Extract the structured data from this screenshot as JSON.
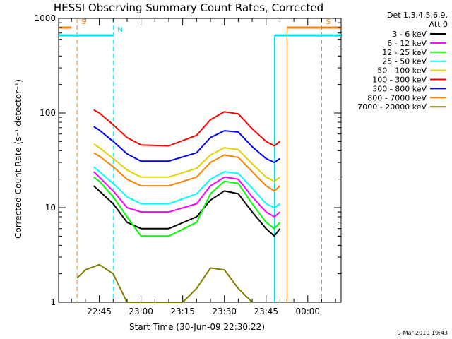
{
  "chart_data": {
    "type": "line",
    "title": "HESSI Observing Summary Count Rates, Corrected",
    "xlabel": "Start Time (30-Jun-09 22:30:22)",
    "ylabel": "Corrected Count Rate (s⁻¹ detector⁻¹)",
    "y_scale": "log",
    "ylim": [
      1,
      1000
    ],
    "xlim": [
      "22:30:22",
      "00:12"
    ],
    "x_ticks": [
      "22:45",
      "23:00",
      "23:15",
      "23:30",
      "23:45",
      "00:00"
    ],
    "y_ticks": [
      "1",
      "10",
      "100",
      "1000"
    ],
    "legend_header": [
      "Det 1,3,4,5,6,9,",
      "Att 0"
    ],
    "legend_position": "right",
    "footer": "9-Mar-2010 19:43",
    "flags": [
      {
        "label": "S",
        "color": "#ff7f00",
        "start": "22:30:22",
        "end": "22:35:00",
        "level": 800,
        "end_marker": "22:37:00"
      },
      {
        "label": "S",
        "color": "#ff7f00",
        "start": "23:52:30",
        "end": "00:12",
        "level": 800,
        "start_marker": "23:52:30",
        "end_marker": "00:05:00"
      },
      {
        "label": "N",
        "color": "#00e5ee",
        "start": "22:30:22",
        "end": "22:50:00",
        "level": 660,
        "end_marker": "22:50:00"
      },
      {
        "label": "",
        "color": "#00e5ee",
        "start": "23:48:00",
        "end": "00:12",
        "level": 660,
        "start_marker": "23:48:00"
      }
    ],
    "series": [
      {
        "name": "3 - 6 keV",
        "color": "#000000",
        "x": [
          "22:43",
          "22:45",
          "22:50",
          "22:55",
          "23:00",
          "23:10",
          "23:20",
          "23:25",
          "23:30",
          "23:35",
          "23:40",
          "23:45",
          "23:48",
          "23:50"
        ],
        "values": [
          17,
          15,
          11,
          7,
          6,
          6,
          8,
          12,
          15,
          14,
          9,
          6,
          5,
          6
        ]
      },
      {
        "name": "6 - 12 keV",
        "color": "#ff00ff",
        "x": [
          "22:43",
          "22:45",
          "22:50",
          "22:55",
          "23:00",
          "23:10",
          "23:20",
          "23:25",
          "23:30",
          "23:35",
          "23:40",
          "23:45",
          "23:48",
          "23:50"
        ],
        "values": [
          24,
          21,
          15,
          10,
          9,
          9,
          11,
          17,
          21,
          20,
          13,
          9,
          8,
          9
        ]
      },
      {
        "name": "12 - 25 keV",
        "color": "#00ff00",
        "x": [
          "22:43",
          "22:45",
          "22:50",
          "22:55",
          "23:00",
          "23:10",
          "23:20",
          "23:25",
          "23:30",
          "23:35",
          "23:40",
          "23:45",
          "23:48",
          "23:50"
        ],
        "values": [
          21,
          19,
          13,
          8,
          5,
          5,
          7,
          14,
          19,
          18,
          11,
          7,
          6,
          7
        ]
      },
      {
        "name": "25 - 50 keV",
        "color": "#00ffff",
        "x": [
          "22:43",
          "22:45",
          "22:50",
          "22:55",
          "23:00",
          "23:10",
          "23:20",
          "23:25",
          "23:30",
          "23:35",
          "23:40",
          "23:45",
          "23:48",
          "23:50"
        ],
        "values": [
          27,
          24,
          18,
          13,
          11,
          11,
          14,
          20,
          24,
          23,
          16,
          11,
          10,
          11
        ]
      },
      {
        "name": "50 - 100 keV",
        "color": "#e5d000",
        "x": [
          "22:43",
          "22:45",
          "22:50",
          "22:55",
          "23:00",
          "23:10",
          "23:20",
          "23:25",
          "23:30",
          "23:35",
          "23:40",
          "23:45",
          "23:48",
          "23:50"
        ],
        "values": [
          47,
          43,
          33,
          25,
          21,
          21,
          26,
          36,
          43,
          41,
          29,
          21,
          19,
          21
        ]
      },
      {
        "name": "100 - 300 keV",
        "color": "#ff0000",
        "x": [
          "22:43",
          "22:45",
          "22:50",
          "22:55",
          "23:00",
          "23:10",
          "23:20",
          "23:25",
          "23:30",
          "23:35",
          "23:40",
          "23:45",
          "23:48",
          "23:50"
        ],
        "values": [
          108,
          100,
          75,
          55,
          46,
          45,
          58,
          85,
          103,
          98,
          68,
          50,
          45,
          50
        ]
      },
      {
        "name": "300 - 800 keV",
        "color": "#0000ff",
        "x": [
          "22:43",
          "22:45",
          "22:50",
          "22:55",
          "23:00",
          "23:10",
          "23:20",
          "23:25",
          "23:30",
          "23:35",
          "23:40",
          "23:45",
          "23:48",
          "23:50"
        ],
        "values": [
          72,
          66,
          50,
          37,
          31,
          31,
          38,
          55,
          65,
          63,
          44,
          33,
          30,
          33
        ]
      },
      {
        "name": "800 - 7000 keV",
        "color": "#ff7f00",
        "x": [
          "22:43",
          "22:45",
          "22:50",
          "22:55",
          "23:00",
          "23:10",
          "23:20",
          "23:25",
          "23:30",
          "23:35",
          "23:40",
          "23:45",
          "23:48",
          "23:50"
        ],
        "values": [
          38,
          35,
          27,
          20,
          17,
          17,
          21,
          30,
          36,
          34,
          24,
          17,
          15,
          17
        ]
      },
      {
        "name": "7000 - 20000 keV",
        "color": "#808000",
        "x": [
          "22:37",
          "22:40",
          "22:45",
          "22:50",
          "22:55",
          "23:00",
          "23:15",
          "23:20",
          "23:25",
          "23:30",
          "23:35",
          "23:40"
        ],
        "values": [
          1.8,
          2.2,
          2.5,
          2.0,
          1.0,
          1.0,
          1.0,
          1.4,
          2.3,
          2.2,
          1.4,
          1.0
        ]
      }
    ]
  }
}
